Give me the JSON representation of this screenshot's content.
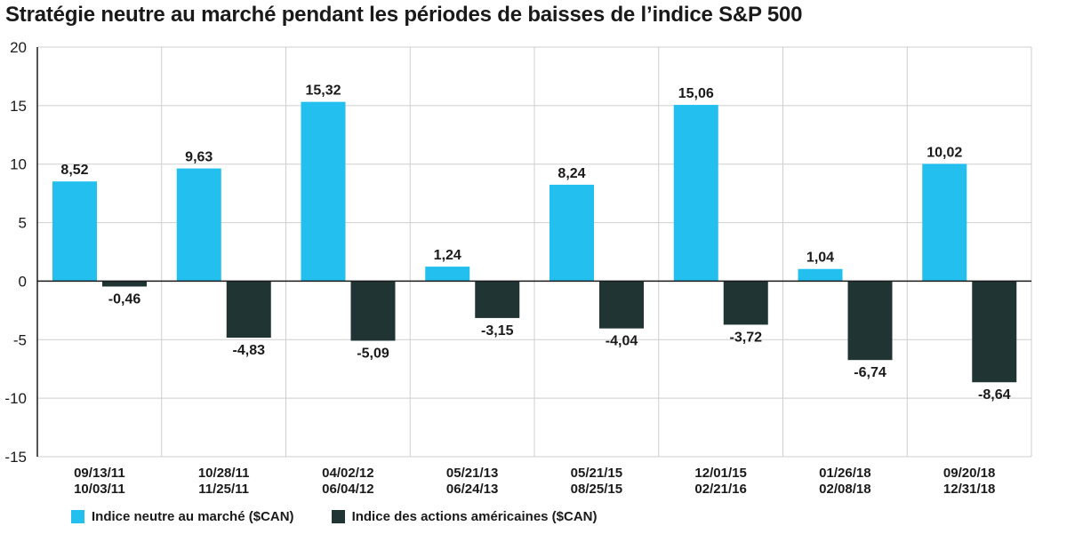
{
  "chart_data": {
    "type": "bar",
    "title": "Stratégie neutre au marché pendant les périodes de baisses de l’indice S&P 500",
    "xlabel": "",
    "ylabel": "",
    "ylim": [
      -15,
      20
    ],
    "yticks": [
      20,
      15,
      10,
      5,
      0,
      -5,
      -10,
      -15
    ],
    "ytick_labels": [
      "20",
      "15",
      "10",
      "5",
      "0",
      "-5",
      "-10",
      "-15"
    ],
    "grid": true,
    "legend_position": "bottom-left",
    "categories": [
      [
        "09/13/11",
        "10/03/11"
      ],
      [
        "10/28/11",
        "11/25/11"
      ],
      [
        "04/02/12",
        "06/04/12"
      ],
      [
        "05/21/13",
        "06/24/13"
      ],
      [
        "05/21/15",
        "08/25/15"
      ],
      [
        "12/01/15",
        "02/21/16"
      ],
      [
        "01/26/18",
        "02/08/18"
      ],
      [
        "09/20/18",
        "12/31/18"
      ]
    ],
    "series": [
      {
        "name": "Indice neutre au marché ($CAN)",
        "color": "#22bfef",
        "values": [
          8.52,
          9.63,
          15.32,
          1.24,
          8.24,
          15.06,
          1.04,
          10.02
        ],
        "labels": [
          "8,52",
          "9,63",
          "15,32",
          "1,24",
          "8,24",
          "15,06",
          "1,04",
          "10,02"
        ]
      },
      {
        "name": "Indice des actions américaines ($CAN)",
        "color": "#203434",
        "values": [
          -0.46,
          -4.83,
          -5.09,
          -3.15,
          -4.04,
          -3.72,
          -6.74,
          -8.64
        ],
        "labels": [
          "-0,46",
          "-4,83",
          "-5,09",
          "-3,15",
          "-4,04",
          "-3,72",
          "-6,74",
          "-8,64"
        ]
      }
    ]
  }
}
